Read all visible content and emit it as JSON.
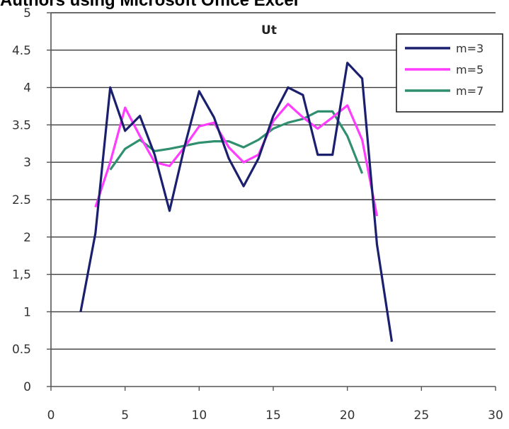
{
  "caption": "Authors using Microsoft Office Excel",
  "chart_data": {
    "type": "line",
    "title": "Ut",
    "xlabel": "",
    "ylabel": "",
    "xlim": [
      0,
      30
    ],
    "ylim": [
      0,
      5
    ],
    "x_ticks": [
      "0",
      "5",
      "10",
      "15",
      "20",
      "25",
      "30"
    ],
    "y_ticks": [
      "0",
      "0.5",
      "1",
      "1,5",
      "2",
      "2.5",
      "3",
      "3.5",
      "4",
      "4.5",
      "5"
    ],
    "grid": "horizontal",
    "legend_position": "top-right",
    "series": [
      {
        "name": "m=3",
        "color": "#1a1f6e",
        "points": [
          [
            2,
            1.0
          ],
          [
            3,
            2.05
          ],
          [
            4,
            4.0
          ],
          [
            5,
            3.42
          ],
          [
            6,
            3.62
          ],
          [
            7,
            3.1
          ],
          [
            8,
            2.35
          ],
          [
            9,
            3.2
          ],
          [
            10,
            3.95
          ],
          [
            11,
            3.6
          ],
          [
            12,
            3.05
          ],
          [
            13,
            2.68
          ],
          [
            14,
            3.05
          ],
          [
            15,
            3.62
          ],
          [
            16,
            4.0
          ],
          [
            17,
            3.9
          ],
          [
            18,
            3.1
          ],
          [
            19,
            3.1
          ],
          [
            20,
            4.33
          ],
          [
            21,
            4.12
          ],
          [
            22,
            1.9
          ],
          [
            23,
            0.6
          ]
        ]
      },
      {
        "name": "m=5",
        "color": "#ff3cff",
        "points": [
          [
            3,
            2.4
          ],
          [
            4,
            3.0
          ],
          [
            5,
            3.73
          ],
          [
            6,
            3.35
          ],
          [
            7,
            3.0
          ],
          [
            8,
            2.95
          ],
          [
            9,
            3.2
          ],
          [
            10,
            3.48
          ],
          [
            11,
            3.53
          ],
          [
            12,
            3.2
          ],
          [
            13,
            3.0
          ],
          [
            14,
            3.1
          ],
          [
            15,
            3.55
          ],
          [
            16,
            3.78
          ],
          [
            17,
            3.6
          ],
          [
            18,
            3.45
          ],
          [
            19,
            3.6
          ],
          [
            20,
            3.76
          ],
          [
            21,
            3.3
          ],
          [
            22,
            2.28
          ]
        ]
      },
      {
        "name": "m=7",
        "color": "#2f8f6f",
        "points": [
          [
            4,
            2.9
          ],
          [
            5,
            3.18
          ],
          [
            6,
            3.3
          ],
          [
            7,
            3.15
          ],
          [
            8,
            3.18
          ],
          [
            9,
            3.22
          ],
          [
            10,
            3.26
          ],
          [
            11,
            3.28
          ],
          [
            12,
            3.28
          ],
          [
            13,
            3.2
          ],
          [
            14,
            3.3
          ],
          [
            15,
            3.45
          ],
          [
            16,
            3.53
          ],
          [
            17,
            3.58
          ],
          [
            18,
            3.68
          ],
          [
            19,
            3.68
          ],
          [
            20,
            3.35
          ],
          [
            21,
            2.85
          ]
        ]
      }
    ]
  }
}
